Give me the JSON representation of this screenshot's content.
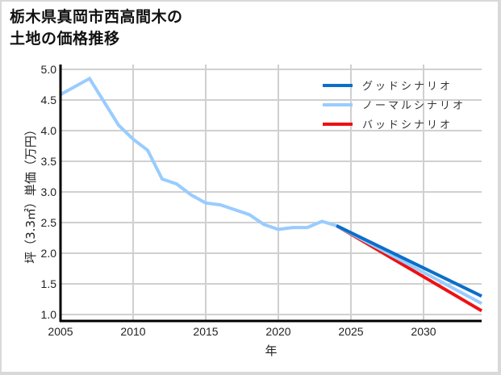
{
  "title_line1": "栃木県真岡市西高間木の",
  "title_line2": "土地の価格推移",
  "chart_data": {
    "type": "line",
    "title": "栃木県真岡市西高間木の土地の価格推移",
    "xlabel": "年",
    "ylabel": "坪（3.3㎡）単価（万円）",
    "xlim": [
      2005,
      2034
    ],
    "ylim": [
      1.0,
      5.0
    ],
    "xticks": [
      "2005",
      "2010",
      "2015",
      "2020",
      "2025",
      "2030"
    ],
    "yticks": [
      "1.0",
      "1.5",
      "2.0",
      "2.5",
      "3.0",
      "3.5",
      "4.0",
      "4.5",
      "5.0"
    ],
    "grid": true,
    "legend_position": "upper right",
    "historical": {
      "x": [
        2005,
        2007,
        2009,
        2010,
        2011,
        2012,
        2013,
        2014,
        2015,
        2016,
        2017,
        2018,
        2019,
        2020,
        2021,
        2022,
        2023,
        2024
      ],
      "y": [
        4.59,
        4.85,
        4.09,
        3.86,
        3.68,
        3.21,
        3.13,
        2.95,
        2.82,
        2.79,
        2.71,
        2.63,
        2.47,
        2.39,
        2.42,
        2.42,
        2.52,
        2.45
      ]
    },
    "series": [
      {
        "name": "グッドシナリオ",
        "color": "#0b6fc9",
        "x": [
          2024,
          2034
        ],
        "y": [
          2.45,
          1.3
        ]
      },
      {
        "name": "ノーマルシナリオ",
        "color": "#99ccff",
        "x": [
          2024,
          2034
        ],
        "y": [
          2.45,
          1.18
        ]
      },
      {
        "name": "バッドシナリオ",
        "color": "#ee1111",
        "x": [
          2024,
          2034
        ],
        "y": [
          2.45,
          1.06
        ]
      }
    ]
  }
}
